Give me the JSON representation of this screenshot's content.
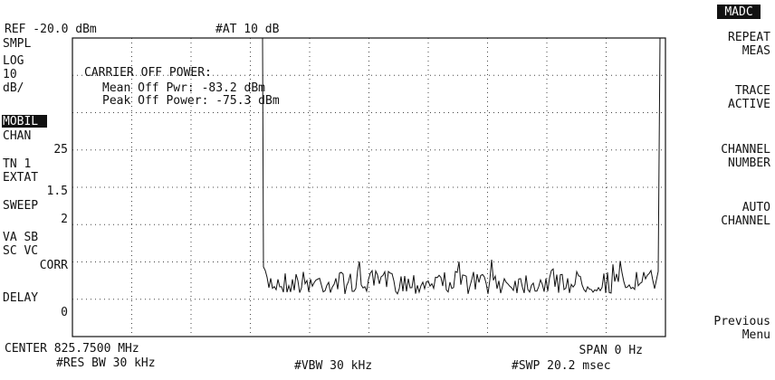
{
  "header": {
    "ref": "REF -20.0 dBm",
    "attenuation": "#AT 10 dB"
  },
  "left_annotations": [
    "SMPL",
    "LOG",
    "10",
    "dB/",
    "MOBIL",
    "CHAN",
    "25",
    "TN 1",
    "EXTAT",
    "1.5",
    "SWEEP",
    "2",
    "VA SB",
    "SC VC",
    "CORR",
    "DELAY",
    "0"
  ],
  "measurement": {
    "title": "CARRIER OFF POWER:",
    "lines": [
      "Mean Off Pwr: -83.2 dBm",
      "Peak Off Power: -75.3 dBm"
    ]
  },
  "footer": {
    "center": "CENTER 825.7500 MHz",
    "span": "SPAN 0 Hz",
    "res_bw": "#RES BW 30 kHz",
    "vbw": "#VBW 30 kHz",
    "sweep": "#SWP 20.2 msec"
  },
  "menu_title": "MADC",
  "softkeys": [
    [
      "REPEAT",
      "MEAS"
    ],
    [
      "TRACE",
      "ACTIVE"
    ],
    [
      "CHANNEL",
      "NUMBER"
    ],
    [
      "AUTO",
      "CHANNEL"
    ],
    [
      "Previous",
      "Menu"
    ]
  ]
}
